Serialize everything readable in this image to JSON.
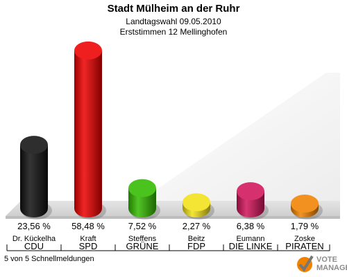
{
  "header": {
    "title": "Stadt Mülheim an der Ruhr",
    "subtitle1": "Landtagswahl 09.05.2010",
    "subtitle2": "Erststimmen 12 Mellinghofen"
  },
  "footer": {
    "status": "5 von 5 Schnellmeldungen"
  },
  "logo": {
    "line1": "VOTE",
    "line2": "MANAGER"
  },
  "chart_data": {
    "type": "bar",
    "style": "3d-cylinder",
    "ylim": [
      0,
      60
    ],
    "categories": [
      "Dr. Kückelha",
      "Kraft",
      "Steffens",
      "Beitz",
      "Eumann",
      "Zoske"
    ],
    "parties": [
      "CDU",
      "SPD",
      "GRÜNE",
      "FDP",
      "DIE LINKE",
      "PIRATEN"
    ],
    "values": [
      23.56,
      58.48,
      7.52,
      2.27,
      6.38,
      1.79
    ],
    "value_labels": [
      "23,56 %",
      "58,48 %",
      "7,52 %",
      "2,27 %",
      "6,38 %",
      "1,79 %"
    ],
    "colors": [
      "#111111",
      "#ee0000",
      "#33bb00",
      "#f2e21a",
      "#d2145a",
      "#f08200"
    ]
  }
}
